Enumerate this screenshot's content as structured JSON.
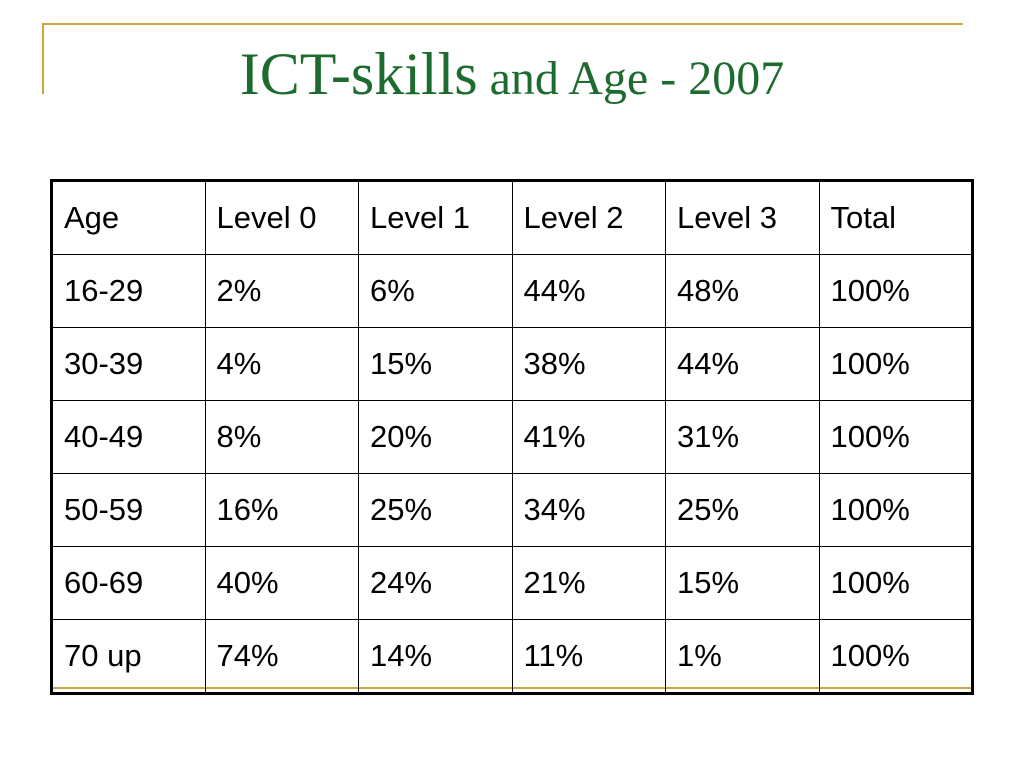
{
  "slide": {
    "title_part1": "ICT-skills",
    "title_part2": " and Age - 2007"
  },
  "colors": {
    "title": "#1e6b2f",
    "accent_line": "#c9a642",
    "table_border": "#000000"
  },
  "table": {
    "headers": [
      "Age",
      "Level 0",
      "Level 1",
      "Level 2",
      "Level 3",
      "Total"
    ],
    "rows": [
      [
        "16-29",
        "2%",
        "6%",
        "44%",
        "48%",
        "100%"
      ],
      [
        "30-39",
        "4%",
        "15%",
        "38%",
        "44%",
        "100%"
      ],
      [
        "40-49",
        "8%",
        "20%",
        "41%",
        "31%",
        "100%"
      ],
      [
        "50-59",
        "16%",
        "25%",
        "34%",
        "25%",
        "100%"
      ],
      [
        "60-69",
        "40%",
        "24%",
        "21%",
        "15%",
        "100%"
      ],
      [
        "70 up",
        "74%",
        "14%",
        "11%",
        "1%",
        "100%"
      ]
    ]
  }
}
